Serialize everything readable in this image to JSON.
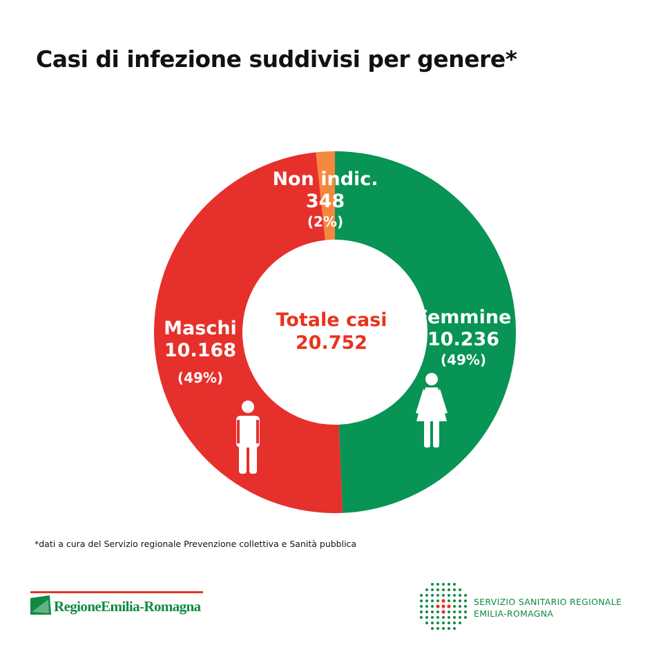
{
  "title": "Casi di infezione suddivisi per genere*",
  "chart_data": {
    "type": "pie",
    "title": "Casi di infezione suddivisi per genere*",
    "center_label": {
      "line1": "Totale casi",
      "line2": "20.752"
    },
    "slices": [
      {
        "name": "Femmine",
        "value": 10236,
        "value_label": "10.236",
        "percent_label": "(49%)",
        "color": "#079454"
      },
      {
        "name": "Maschi",
        "value": 10168,
        "value_label": "10.168",
        "percent_label": "(49%)",
        "color": "#e6302b"
      },
      {
        "name": "Non indic.",
        "value": 348,
        "value_label": "348",
        "percent_label": "(2%)",
        "color": "#f5873f"
      }
    ]
  },
  "footnote": "*dati a cura del Servizio regionale Prevenzione collettiva e Sanità pubblica",
  "logos": {
    "left": {
      "text": "RegioneEmilia-Romagna"
    },
    "right": {
      "line1": "SERVIZIO SANITARIO REGIONALE",
      "line2": "EMILIA-ROMAGNA"
    }
  },
  "icons": {
    "male": "male-person-icon",
    "female": "female-person-icon"
  }
}
